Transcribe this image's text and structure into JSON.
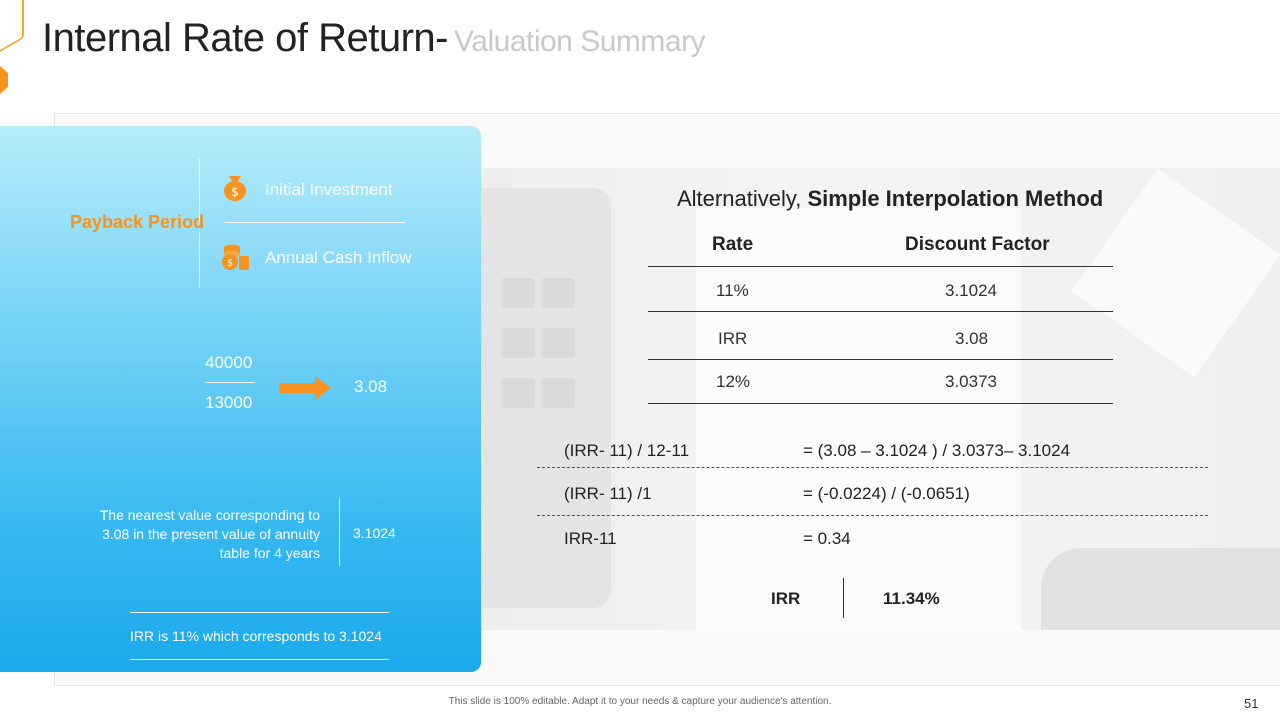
{
  "header": {
    "title": "Internal Rate of Return-",
    "subtitle": "Valuation Summary"
  },
  "colors": {
    "accent": "#f7931e",
    "panel_top": "#b7ecfb",
    "panel_bottom": "#1ba9ec"
  },
  "left_panel": {
    "payback_label": "Payback Period",
    "initial_investment_label": "Initial Investment",
    "initial_investment_icon": "money-bag-icon",
    "annual_cash_label": "Annual Cash Inflow",
    "annual_cash_icon": "coins-icon",
    "numerator": "40000",
    "denominator": "13000",
    "arrow_icon": "arrow-right-icon",
    "result": "3.08",
    "nearest_text": "The nearest value corresponding to 3.08 in the present value of annuity table for 4 years",
    "nearest_value": "3.1024",
    "irr_note": "IRR is 11% which corresponds to 3.1024"
  },
  "right_panel": {
    "heading_prefix": "Alternatively,",
    "heading_bold": "Simple Interpolation Method",
    "table": {
      "columns": [
        "Rate",
        "Discount Factor"
      ],
      "rows": [
        [
          "11%",
          "3.1024"
        ],
        [
          "IRR",
          "3.08"
        ],
        [
          "12%",
          "3.0373"
        ]
      ]
    },
    "calculations": [
      {
        "left": "(IRR- 11) / 12-11",
        "right": "= (3.08 – 3.1024 ) / 3.0373– 3.1024"
      },
      {
        "left": "(IRR- 11) /1",
        "right": "= (-0.0224) / (-0.0651)"
      },
      {
        "left": "IRR-11",
        "right": "= 0.34"
      }
    ],
    "result_label": "IRR",
    "result_value": "11.34%"
  },
  "footer": {
    "text": "This slide is 100% editable. Adapt it to your needs & capture your audience's attention.",
    "page_number": "51"
  }
}
